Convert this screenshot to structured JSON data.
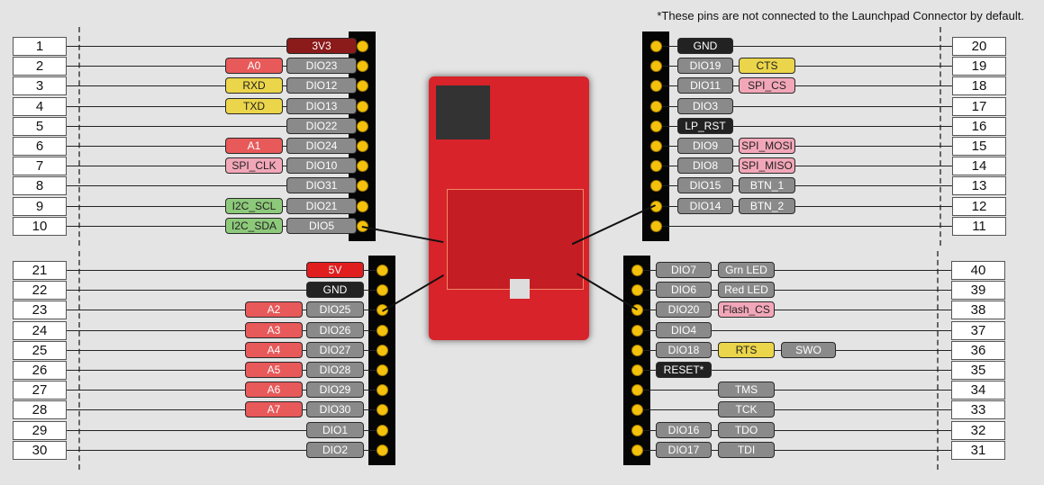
{
  "note": "*These pins are not connected to the Launchpad Connector by default.",
  "colors": {
    "dio": "#8a8a8a",
    "analog": "#e8595a",
    "uart": "#ebd54a",
    "spi": "#f2a7b8",
    "i2c": "#8dc97a",
    "gnd": "#222222",
    "v33": "#8b1a1a",
    "v5": "#e01e1e",
    "pin": "#f4c20d"
  },
  "left_top": [
    {
      "num": "1",
      "labels": [
        {
          "text": "3V3",
          "kind": "v33"
        }
      ]
    },
    {
      "num": "2",
      "labels": [
        {
          "text": "DIO23",
          "kind": "dio"
        },
        {
          "text": "A0",
          "kind": "analog"
        }
      ]
    },
    {
      "num": "3",
      "labels": [
        {
          "text": "DIO12",
          "kind": "dio"
        },
        {
          "text": "RXD",
          "kind": "uart"
        }
      ]
    },
    {
      "num": "4",
      "labels": [
        {
          "text": "DIO13",
          "kind": "dio"
        },
        {
          "text": "TXD",
          "kind": "uart"
        }
      ]
    },
    {
      "num": "5",
      "labels": [
        {
          "text": "DIO22",
          "kind": "dio"
        }
      ]
    },
    {
      "num": "6",
      "labels": [
        {
          "text": "DIO24",
          "kind": "dio"
        },
        {
          "text": "A1",
          "kind": "analog"
        }
      ]
    },
    {
      "num": "7",
      "labels": [
        {
          "text": "DIO10",
          "kind": "dio"
        },
        {
          "text": "SPI_CLK",
          "kind": "spi"
        }
      ]
    },
    {
      "num": "8",
      "labels": [
        {
          "text": "DIO31",
          "kind": "dio"
        }
      ]
    },
    {
      "num": "9",
      "labels": [
        {
          "text": "DIO21",
          "kind": "dio"
        },
        {
          "text": "I2C_SCL",
          "kind": "i2c"
        }
      ]
    },
    {
      "num": "10",
      "labels": [
        {
          "text": "DIO5",
          "kind": "dio"
        },
        {
          "text": "I2C_SDA",
          "kind": "i2c"
        }
      ]
    }
  ],
  "left_bottom": [
    {
      "num": "21",
      "labels": [
        {
          "text": "5V",
          "kind": "v5"
        }
      ]
    },
    {
      "num": "22",
      "labels": [
        {
          "text": "GND",
          "kind": "gnd"
        }
      ]
    },
    {
      "num": "23",
      "labels": [
        {
          "text": "DIO25",
          "kind": "dio"
        },
        {
          "text": "A2",
          "kind": "analog"
        }
      ]
    },
    {
      "num": "24",
      "labels": [
        {
          "text": "DIO26",
          "kind": "dio"
        },
        {
          "text": "A3",
          "kind": "analog"
        }
      ]
    },
    {
      "num": "25",
      "labels": [
        {
          "text": "DIO27",
          "kind": "dio"
        },
        {
          "text": "A4",
          "kind": "analog"
        }
      ]
    },
    {
      "num": "26",
      "labels": [
        {
          "text": "DIO28",
          "kind": "dio"
        },
        {
          "text": "A5",
          "kind": "analog"
        }
      ]
    },
    {
      "num": "27",
      "labels": [
        {
          "text": "DIO29",
          "kind": "dio"
        },
        {
          "text": "A6",
          "kind": "analog"
        }
      ]
    },
    {
      "num": "28",
      "labels": [
        {
          "text": "DIO30",
          "kind": "dio"
        },
        {
          "text": "A7",
          "kind": "analog"
        }
      ]
    },
    {
      "num": "29",
      "labels": [
        {
          "text": "DIO1",
          "kind": "dio"
        }
      ]
    },
    {
      "num": "30",
      "labels": [
        {
          "text": "DIO2",
          "kind": "dio"
        }
      ]
    }
  ],
  "right_top": [
    {
      "num": "20",
      "labels": [
        {
          "text": "GND",
          "kind": "gnd"
        }
      ]
    },
    {
      "num": "19",
      "labels": [
        {
          "text": "DIO19",
          "kind": "dio"
        },
        {
          "text": "CTS",
          "kind": "uart"
        }
      ]
    },
    {
      "num": "18",
      "labels": [
        {
          "text": "DIO11",
          "kind": "dio"
        },
        {
          "text": "SPI_CS",
          "kind": "spi"
        }
      ]
    },
    {
      "num": "17",
      "labels": [
        {
          "text": "DIO3",
          "kind": "dio"
        }
      ]
    },
    {
      "num": "16",
      "labels": [
        {
          "text": "LP_RST",
          "kind": "gnd"
        }
      ]
    },
    {
      "num": "15",
      "labels": [
        {
          "text": "DIO9",
          "kind": "dio"
        },
        {
          "text": "SPI_MOSI",
          "kind": "spi"
        }
      ]
    },
    {
      "num": "14",
      "labels": [
        {
          "text": "DIO8",
          "kind": "dio"
        },
        {
          "text": "SPI_MISO",
          "kind": "spi"
        }
      ]
    },
    {
      "num": "13",
      "labels": [
        {
          "text": "DIO15",
          "kind": "dio"
        },
        {
          "text": "BTN_1",
          "kind": "dio"
        }
      ]
    },
    {
      "num": "12",
      "labels": [
        {
          "text": "DIO14",
          "kind": "dio"
        },
        {
          "text": "BTN_2",
          "kind": "dio"
        }
      ]
    },
    {
      "num": "11",
      "labels": []
    }
  ],
  "right_bottom": [
    {
      "num": "40",
      "labels": [
        {
          "text": "DIO7",
          "kind": "dio"
        },
        {
          "text": "Grn LED",
          "kind": "dio"
        }
      ]
    },
    {
      "num": "39",
      "labels": [
        {
          "text": "DIO6",
          "kind": "dio"
        },
        {
          "text": "Red LED",
          "kind": "dio"
        }
      ]
    },
    {
      "num": "38",
      "labels": [
        {
          "text": "DIO20",
          "kind": "dio"
        },
        {
          "text": "Flash_CS",
          "kind": "spi"
        }
      ]
    },
    {
      "num": "37",
      "labels": [
        {
          "text": "DIO4",
          "kind": "dio"
        }
      ]
    },
    {
      "num": "36",
      "labels": [
        {
          "text": "DIO18",
          "kind": "dio"
        },
        {
          "text": "RTS",
          "kind": "uart"
        },
        {
          "text": "SWO",
          "kind": "dio"
        }
      ]
    },
    {
      "num": "35",
      "labels": [
        {
          "text": "RESET*",
          "kind": "gnd"
        }
      ]
    },
    {
      "num": "34",
      "labels": [
        null,
        {
          "text": "TMS",
          "kind": "dio"
        }
      ]
    },
    {
      "num": "33",
      "labels": [
        null,
        {
          "text": "TCK",
          "kind": "dio"
        }
      ]
    },
    {
      "num": "32",
      "labels": [
        {
          "text": "DIO16",
          "kind": "dio"
        },
        {
          "text": "TDO",
          "kind": "dio"
        }
      ]
    },
    {
      "num": "31",
      "labels": [
        {
          "text": "DIO17",
          "kind": "dio"
        },
        {
          "text": "TDI",
          "kind": "dio"
        }
      ]
    }
  ]
}
